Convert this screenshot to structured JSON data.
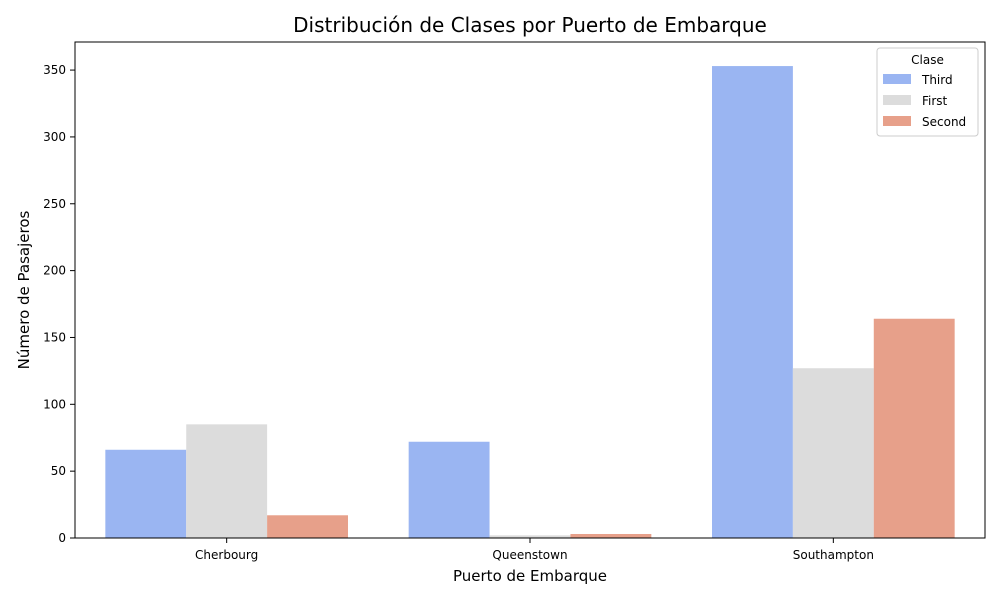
{
  "chart_data": {
    "type": "bar",
    "title": "Distribución de Clases por Puerto de Embarque",
    "xlabel": "Puerto de Embarque",
    "ylabel": "Número de Pasajeros",
    "categories": [
      "Cherbourg",
      "Queenstown",
      "Southampton"
    ],
    "series": [
      {
        "name": "Third",
        "color": "#9ab5f2",
        "values": [
          66,
          72,
          353
        ]
      },
      {
        "name": "First",
        "color": "#dcdcdc",
        "values": [
          85,
          2,
          127
        ]
      },
      {
        "name": "Second",
        "color": "#e7a08a",
        "values": [
          17,
          3,
          164
        ]
      }
    ],
    "ylim": [
      0,
      371
    ],
    "yticks": [
      0,
      50,
      100,
      150,
      200,
      250,
      300,
      350
    ],
    "legend": {
      "title": "Clase",
      "position": "top-right"
    },
    "grid": false
  }
}
